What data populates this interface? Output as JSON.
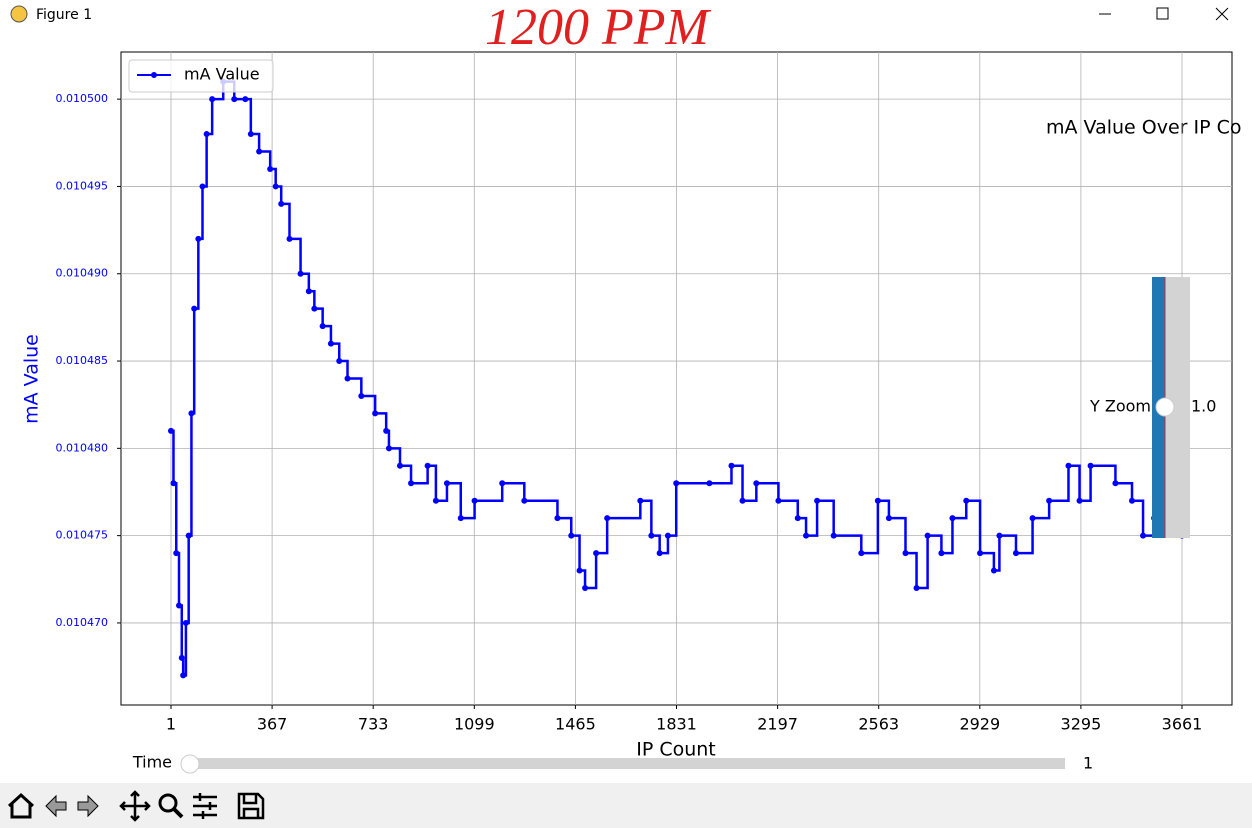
{
  "window": {
    "title": "Figure 1"
  },
  "annotation": "1200 PPM",
  "chart_data": {
    "type": "line",
    "title": "mA Value Over IP Co",
    "xlabel": "IP Count",
    "ylabel": "mA Value",
    "xlim": [
      -180,
      3842
    ],
    "ylim": [
      0.0104653,
      0.0105027
    ],
    "xticks": [
      1,
      367,
      733,
      1099,
      1465,
      1831,
      2197,
      2563,
      2929,
      3295,
      3661
    ],
    "yticks": [
      {
        "value": 0.01047,
        "label": "0.010470"
      },
      {
        "value": 0.010475,
        "label": "0.010475"
      },
      {
        "value": 0.01048,
        "label": "0.010480"
      },
      {
        "value": 0.010485,
        "label": "0.010485"
      },
      {
        "value": 0.01049,
        "label": "0.010490"
      },
      {
        "value": 0.010495,
        "label": "0.010495"
      },
      {
        "value": 0.0105,
        "label": "0.010500"
      }
    ],
    "grid": true,
    "legend": "upper left",
    "drawstyle": "steps-post",
    "label_color": "#0000ff",
    "x": [
      1,
      10,
      20,
      30,
      40,
      45,
      55,
      65,
      75,
      85,
      100,
      115,
      130,
      150,
      190,
      230,
      270,
      290,
      320,
      360,
      380,
      400,
      430,
      470,
      500,
      520,
      550,
      580,
      610,
      640,
      690,
      740,
      780,
      790,
      830,
      870,
      930,
      960,
      1000,
      1050,
      1100,
      1200,
      1280,
      1400,
      1450,
      1480,
      1500,
      1540,
      1580,
      1700,
      1740,
      1770,
      1800,
      1830,
      1950,
      2030,
      2070,
      2120,
      2200,
      2270,
      2300,
      2340,
      2400,
      2500,
      2560,
      2600,
      2660,
      2700,
      2740,
      2790,
      2830,
      2880,
      2930,
      2980,
      3000,
      3060,
      3120,
      3180,
      3250,
      3290,
      3330,
      3420,
      3480,
      3520,
      3560,
      3600,
      3661
    ],
    "series": [
      {
        "name": "mA Value",
        "color": "#0000ff",
        "values": [
          0.010481,
          0.010478,
          0.010474,
          0.010471,
          0.010468,
          0.010467,
          0.01047,
          0.010475,
          0.010482,
          0.010488,
          0.010492,
          0.010495,
          0.010498,
          0.0105,
          0.010501,
          0.0105,
          0.0105,
          0.010498,
          0.010497,
          0.010496,
          0.010495,
          0.010494,
          0.010492,
          0.01049,
          0.010489,
          0.010488,
          0.010487,
          0.010486,
          0.010485,
          0.010484,
          0.010483,
          0.010482,
          0.010481,
          0.01048,
          0.010479,
          0.010478,
          0.010479,
          0.010477,
          0.010478,
          0.010476,
          0.010477,
          0.010478,
          0.010477,
          0.010476,
          0.010475,
          0.010473,
          0.010472,
          0.010474,
          0.010476,
          0.010477,
          0.010475,
          0.010474,
          0.010475,
          0.010478,
          0.010478,
          0.010479,
          0.010477,
          0.010478,
          0.010477,
          0.010476,
          0.010475,
          0.010477,
          0.010475,
          0.010474,
          0.010477,
          0.010476,
          0.010474,
          0.010472,
          0.010475,
          0.010474,
          0.010476,
          0.010477,
          0.010474,
          0.010473,
          0.010475,
          0.010474,
          0.010476,
          0.010477,
          0.010479,
          0.010477,
          0.010479,
          0.010478,
          0.010477,
          0.010475,
          0.010476,
          0.01048,
          0.010475
        ]
      }
    ]
  },
  "sliders": {
    "time": {
      "label": "Time",
      "value": "1"
    },
    "yzoom": {
      "label": "Y Zoom",
      "value": "1.0"
    }
  }
}
